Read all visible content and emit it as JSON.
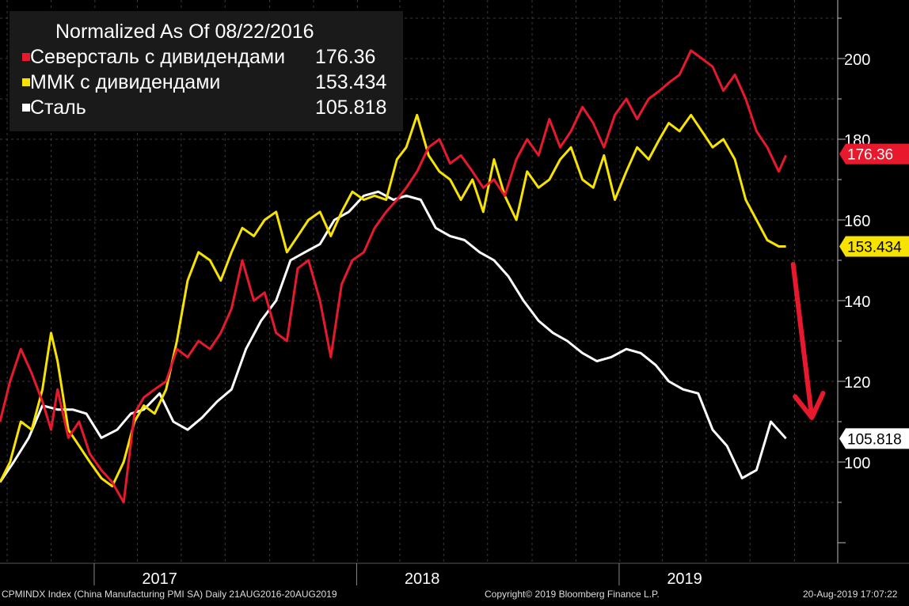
{
  "legend": {
    "title": "Normalized As Of 08/22/2016",
    "items": [
      {
        "name": "Северсталь с дивидендами",
        "value": "176.36",
        "color": "#e8192c"
      },
      {
        "name": "ММК с дивидендами",
        "value": "153.434",
        "color": "#f7e300"
      },
      {
        "name": "Сталь",
        "value": "105.818",
        "color": "#ffffff"
      }
    ]
  },
  "footer": {
    "left": "CPMINDX Index (China Manufacturing PMI SA)  Daily 21AUG2016-20AUG2019",
    "center": "Copyright© 2019 Bloomberg Finance L.P.",
    "right": "20-Aug-2019 17:07:22"
  },
  "chart_data": {
    "type": "line",
    "x_unit": "date",
    "xlim": [
      "2016-08-22",
      "2019-10-31"
    ],
    "ylim": [
      80,
      220
    ],
    "y_ticks": [
      100,
      120,
      140,
      160,
      180,
      200
    ],
    "x_tick_labels": [
      {
        "label": "2017",
        "x": "2017-04-01"
      },
      {
        "label": "2018",
        "x": "2018-04-01"
      },
      {
        "label": "2019",
        "x": "2019-04-01"
      }
    ],
    "grid": true,
    "legend_position": "top-left",
    "last_value_labels": [
      {
        "value": "176.36",
        "color": "#e8192c",
        "text_color": "#ffffff"
      },
      {
        "value": "153.434",
        "color": "#f7e300",
        "text_color": "#000000"
      },
      {
        "value": "105.818",
        "color": "#ffffff",
        "text_color": "#000000"
      }
    ],
    "annotation": {
      "type": "arrow",
      "color": "#e8192c",
      "from": [
        "2019-08-30",
        149
      ],
      "to": [
        "2019-09-25",
        111
      ]
    },
    "series": [
      {
        "name": "Северсталь с дивидендами",
        "color": "#e8192c",
        "x": [
          "2016-08-22",
          "2016-09-05",
          "2016-09-20",
          "2016-10-05",
          "2016-10-20",
          "2016-11-01",
          "2016-11-10",
          "2016-11-25",
          "2016-12-10",
          "2016-12-25",
          "2017-01-10",
          "2017-01-25",
          "2017-02-10",
          "2017-02-25",
          "2017-03-10",
          "2017-03-25",
          "2017-04-10",
          "2017-04-25",
          "2017-05-10",
          "2017-05-25",
          "2017-06-10",
          "2017-06-25",
          "2017-07-10",
          "2017-07-25",
          "2017-08-10",
          "2017-08-25",
          "2017-09-10",
          "2017-09-25",
          "2017-10-10",
          "2017-10-25",
          "2017-11-10",
          "2017-11-25",
          "2017-12-10",
          "2017-12-25",
          "2018-01-10",
          "2018-01-25",
          "2018-02-10",
          "2018-02-25",
          "2018-03-10",
          "2018-03-25",
          "2018-04-10",
          "2018-04-25",
          "2018-05-10",
          "2018-05-25",
          "2018-06-10",
          "2018-06-25",
          "2018-07-10",
          "2018-07-25",
          "2018-08-10",
          "2018-08-25",
          "2018-09-10",
          "2018-09-25",
          "2018-10-10",
          "2018-10-25",
          "2018-11-10",
          "2018-11-25",
          "2018-12-10",
          "2018-12-25",
          "2019-01-10",
          "2019-01-25",
          "2019-02-10",
          "2019-02-25",
          "2019-03-10",
          "2019-03-25",
          "2019-04-10",
          "2019-04-25",
          "2019-05-10",
          "2019-05-25",
          "2019-06-10",
          "2019-06-25",
          "2019-07-10",
          "2019-07-25",
          "2019-08-10",
          "2019-08-20"
        ],
        "values": [
          110,
          120,
          128,
          122,
          115,
          108,
          118,
          106,
          110,
          102,
          98,
          95,
          90,
          112,
          116,
          118,
          120,
          128,
          126,
          130,
          128,
          132,
          138,
          150,
          140,
          142,
          132,
          130,
          148,
          150,
          140,
          126,
          144,
          150,
          152,
          158,
          162,
          165,
          168,
          172,
          178,
          180,
          174,
          176,
          172,
          168,
          170,
          166,
          175,
          180,
          176,
          185,
          178,
          182,
          188,
          184,
          178,
          186,
          190,
          185,
          190,
          192,
          194,
          196,
          202,
          200,
          198,
          192,
          196,
          190,
          182,
          178,
          172,
          176
        ]
      },
      {
        "name": "ММК с дивидендами",
        "color": "#f7e300",
        "x": [
          "2016-08-22",
          "2016-09-05",
          "2016-09-20",
          "2016-10-05",
          "2016-10-20",
          "2016-11-01",
          "2016-11-10",
          "2016-11-25",
          "2016-12-10",
          "2016-12-25",
          "2017-01-10",
          "2017-01-25",
          "2017-02-10",
          "2017-02-25",
          "2017-03-10",
          "2017-03-25",
          "2017-04-10",
          "2017-04-25",
          "2017-05-10",
          "2017-05-25",
          "2017-06-10",
          "2017-06-25",
          "2017-07-10",
          "2017-07-25",
          "2017-08-10",
          "2017-08-25",
          "2017-09-10",
          "2017-09-25",
          "2017-10-10",
          "2017-10-25",
          "2017-11-10",
          "2017-11-25",
          "2017-12-10",
          "2017-12-25",
          "2018-01-10",
          "2018-01-25",
          "2018-02-10",
          "2018-02-25",
          "2018-03-10",
          "2018-03-25",
          "2018-04-10",
          "2018-04-25",
          "2018-05-10",
          "2018-05-25",
          "2018-06-10",
          "2018-06-25",
          "2018-07-10",
          "2018-07-25",
          "2018-08-10",
          "2018-08-25",
          "2018-09-10",
          "2018-09-25",
          "2018-10-10",
          "2018-10-25",
          "2018-11-10",
          "2018-11-25",
          "2018-12-10",
          "2018-12-25",
          "2019-01-10",
          "2019-01-25",
          "2019-02-10",
          "2019-02-25",
          "2019-03-10",
          "2019-03-25",
          "2019-04-10",
          "2019-04-25",
          "2019-05-10",
          "2019-05-25",
          "2019-06-10",
          "2019-06-25",
          "2019-07-10",
          "2019-07-25",
          "2019-08-10",
          "2019-08-20"
        ],
        "values": [
          95,
          100,
          110,
          108,
          118,
          132,
          125,
          108,
          104,
          100,
          96,
          94,
          100,
          110,
          114,
          112,
          118,
          130,
          145,
          152,
          150,
          145,
          152,
          158,
          156,
          160,
          162,
          152,
          156,
          160,
          162,
          156,
          162,
          167,
          165,
          166,
          165,
          175,
          178,
          186,
          176,
          172,
          170,
          165,
          170,
          162,
          175,
          166,
          160,
          172,
          168,
          170,
          175,
          178,
          170,
          168,
          176,
          165,
          172,
          178,
          175,
          180,
          184,
          182,
          186,
          182,
          178,
          180,
          175,
          165,
          160,
          155,
          153.434,
          153.434
        ]
      },
      {
        "name": "Сталь",
        "color": "#ffffff",
        "x": [
          "2016-08-22",
          "2016-09-10",
          "2016-10-01",
          "2016-10-20",
          "2016-11-10",
          "2016-12-01",
          "2016-12-20",
          "2017-01-10",
          "2017-02-01",
          "2017-02-20",
          "2017-03-10",
          "2017-04-01",
          "2017-04-20",
          "2017-05-10",
          "2017-05-30",
          "2017-06-20",
          "2017-07-10",
          "2017-07-30",
          "2017-08-20",
          "2017-09-10",
          "2017-09-30",
          "2017-10-20",
          "2017-11-10",
          "2017-11-30",
          "2017-12-20",
          "2018-01-10",
          "2018-01-30",
          "2018-02-20",
          "2018-03-10",
          "2018-03-30",
          "2018-04-20",
          "2018-05-10",
          "2018-05-30",
          "2018-06-20",
          "2018-07-10",
          "2018-07-30",
          "2018-08-20",
          "2018-09-10",
          "2018-09-30",
          "2018-10-20",
          "2018-11-10",
          "2018-11-30",
          "2018-12-20",
          "2019-01-10",
          "2019-01-30",
          "2019-02-20",
          "2019-03-10",
          "2019-03-30",
          "2019-04-20",
          "2019-05-10",
          "2019-05-30",
          "2019-06-20",
          "2019-07-10",
          "2019-07-30",
          "2019-08-20"
        ],
        "values": [
          95,
          100,
          106,
          114,
          113,
          113,
          112,
          106,
          108,
          112,
          113,
          117,
          110,
          108,
          111,
          115,
          118,
          128,
          135,
          140,
          150,
          152,
          154,
          160,
          162,
          166,
          167,
          165,
          166,
          165,
          158,
          156,
          155,
          152,
          150,
          146,
          140,
          135,
          132,
          130,
          127,
          125,
          126,
          128,
          127,
          124,
          120,
          118,
          117,
          108,
          104,
          96,
          98,
          110,
          105.818
        ]
      }
    ]
  }
}
